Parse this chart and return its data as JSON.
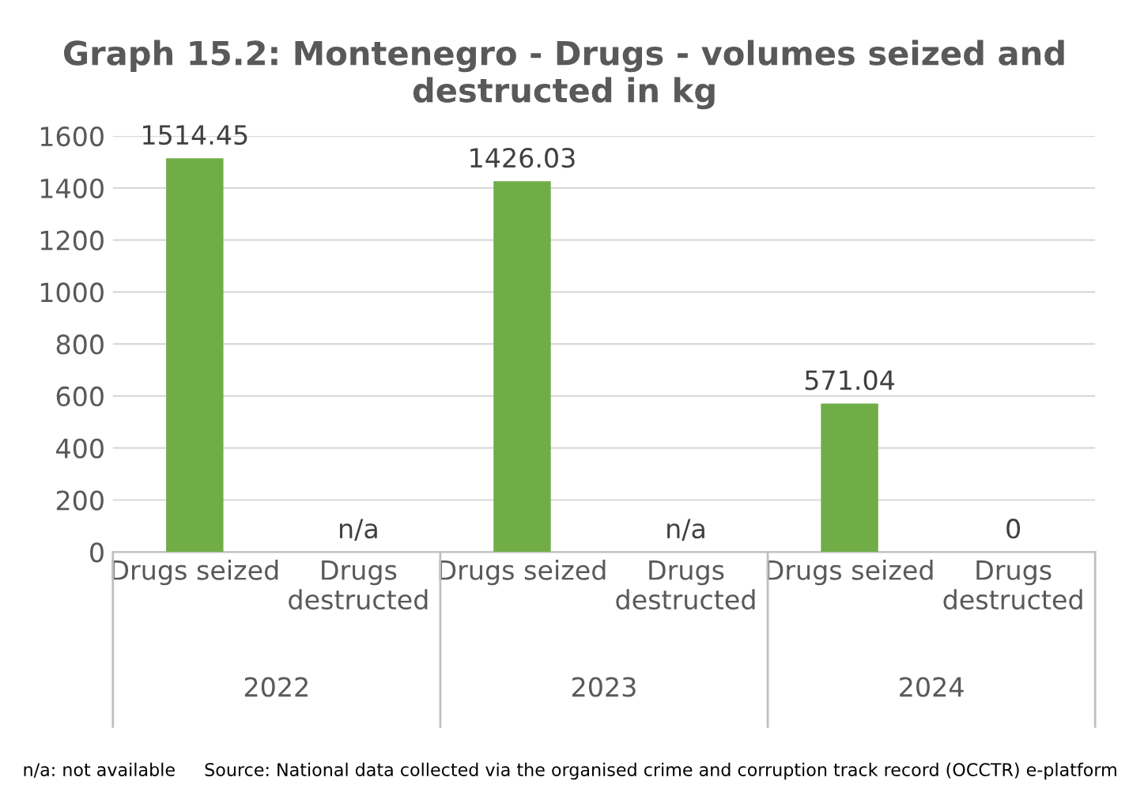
{
  "chart_data": {
    "type": "bar",
    "title": "Graph 15.2: Montenegro - Drugs - volumes seized and destructed in kg",
    "categories": [
      "Drugs seized",
      "Drugs destructed",
      "Drugs seized",
      "Drugs destructed",
      "Drugs seized",
      "Drugs destructed"
    ],
    "values": [
      1514.45,
      null,
      1426.03,
      null,
      571.04,
      0
    ],
    "value_labels": [
      "1514.45",
      "n/a",
      "1426.03",
      "n/a",
      "571.04",
      "0"
    ],
    "color": "#70ad47",
    "ylim": [
      0,
      1600
    ],
    "yticks": [
      0,
      200,
      400,
      600,
      800,
      1000,
      1200,
      1400,
      1600
    ],
    "grid": "y",
    "annotations": [
      "2022",
      "2023",
      "2024",
      "n/a: not available",
      "Source: National data collected via the organised crime and corruption track record (OCCTR) e-platform"
    ]
  }
}
